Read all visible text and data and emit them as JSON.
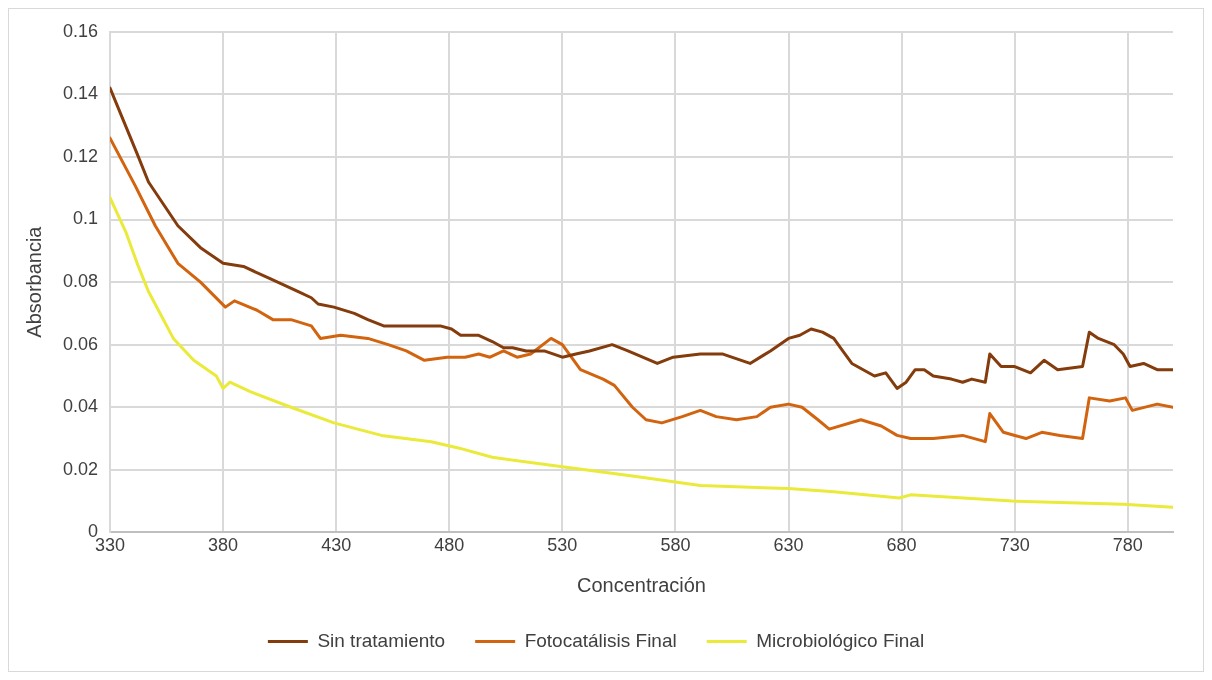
{
  "chart_data": {
    "type": "line",
    "xlabel": "Concentración",
    "ylabel": "Absorbancia",
    "xlim": [
      330,
      800
    ],
    "xticks": [
      330,
      380,
      430,
      480,
      530,
      580,
      630,
      680,
      730,
      780
    ],
    "ylim": [
      0,
      0.16
    ],
    "yticks": [
      0,
      0.02,
      0.04,
      0.06,
      0.08,
      0.1,
      0.12,
      0.14,
      0.16
    ],
    "grid": true,
    "legend": "bottom",
    "marker": "none",
    "line_style": "solid",
    "series": [
      {
        "name": "Sin tratamiento",
        "color": "#843c0c",
        "x": [
          330,
          342,
          347,
          360,
          370,
          380,
          389,
          401,
          413,
          419,
          422,
          429,
          438,
          444,
          451,
          460,
          466,
          476,
          481,
          485,
          493,
          499,
          504,
          508,
          514,
          522,
          530,
          536,
          542,
          552,
          559,
          572,
          579,
          591,
          601,
          613,
          622,
          630,
          635,
          640,
          645,
          650,
          653,
          658,
          668,
          673,
          678,
          682,
          686,
          690,
          694,
          702,
          707,
          711,
          717,
          719,
          724,
          730,
          737,
          743,
          749,
          760,
          763,
          767,
          774,
          778,
          781,
          787,
          793,
          800
        ],
        "values": [
          0.142,
          0.121,
          0.112,
          0.098,
          0.091,
          0.086,
          0.085,
          0.081,
          0.077,
          0.075,
          0.073,
          0.072,
          0.07,
          0.068,
          0.066,
          0.066,
          0.066,
          0.066,
          0.065,
          0.063,
          0.063,
          0.061,
          0.059,
          0.059,
          0.058,
          0.058,
          0.056,
          0.057,
          0.058,
          0.06,
          0.058,
          0.054,
          0.056,
          0.057,
          0.057,
          0.054,
          0.058,
          0.062,
          0.063,
          0.065,
          0.064,
          0.062,
          0.059,
          0.054,
          0.05,
          0.051,
          0.046,
          0.048,
          0.052,
          0.052,
          0.05,
          0.049,
          0.048,
          0.049,
          0.048,
          0.057,
          0.053,
          0.053,
          0.051,
          0.055,
          0.052,
          0.053,
          0.064,
          0.062,
          0.06,
          0.057,
          0.053,
          0.054,
          0.052,
          0.052
        ]
      },
      {
        "name": "Fotocatálisis Final",
        "color": "#d2640f",
        "x": [
          330,
          341,
          350,
          360,
          370,
          381,
          385,
          395,
          402,
          410,
          419,
          423,
          432,
          444,
          453,
          461,
          469,
          479,
          487,
          493,
          498,
          504,
          510,
          516,
          525,
          530,
          538,
          548,
          553,
          561,
          567,
          574,
          583,
          591,
          598,
          607,
          616,
          622,
          630,
          636,
          643,
          648,
          662,
          671,
          678,
          684,
          694,
          707,
          717,
          719,
          725,
          735,
          742,
          750,
          760,
          763,
          772,
          779,
          782,
          793,
          800
        ],
        "values": [
          0.126,
          0.111,
          0.098,
          0.086,
          0.08,
          0.072,
          0.074,
          0.071,
          0.068,
          0.068,
          0.066,
          0.062,
          0.063,
          0.062,
          0.06,
          0.058,
          0.055,
          0.056,
          0.056,
          0.057,
          0.056,
          0.058,
          0.056,
          0.057,
          0.062,
          0.06,
          0.052,
          0.049,
          0.047,
          0.04,
          0.036,
          0.035,
          0.037,
          0.039,
          0.037,
          0.036,
          0.037,
          0.04,
          0.041,
          0.04,
          0.036,
          0.033,
          0.036,
          0.034,
          0.031,
          0.03,
          0.03,
          0.031,
          0.029,
          0.038,
          0.032,
          0.03,
          0.032,
          0.031,
          0.03,
          0.043,
          0.042,
          0.043,
          0.039,
          0.041,
          0.04
        ]
      },
      {
        "name": "Microbiológico Final",
        "color": "#eaea3a",
        "x": [
          330,
          337,
          342,
          347,
          358,
          367,
          377,
          380,
          383,
          392,
          410,
          429,
          450,
          472,
          484,
          499,
          530,
          561,
          591,
          630,
          650,
          679,
          684,
          729,
          778,
          800
        ],
        "values": [
          0.107,
          0.096,
          0.086,
          0.077,
          0.062,
          0.055,
          0.05,
          0.046,
          0.048,
          0.045,
          0.04,
          0.035,
          0.031,
          0.029,
          0.027,
          0.024,
          0.021,
          0.018,
          0.015,
          0.014,
          0.013,
          0.011,
          0.012,
          0.01,
          0.009,
          0.008
        ]
      }
    ]
  }
}
